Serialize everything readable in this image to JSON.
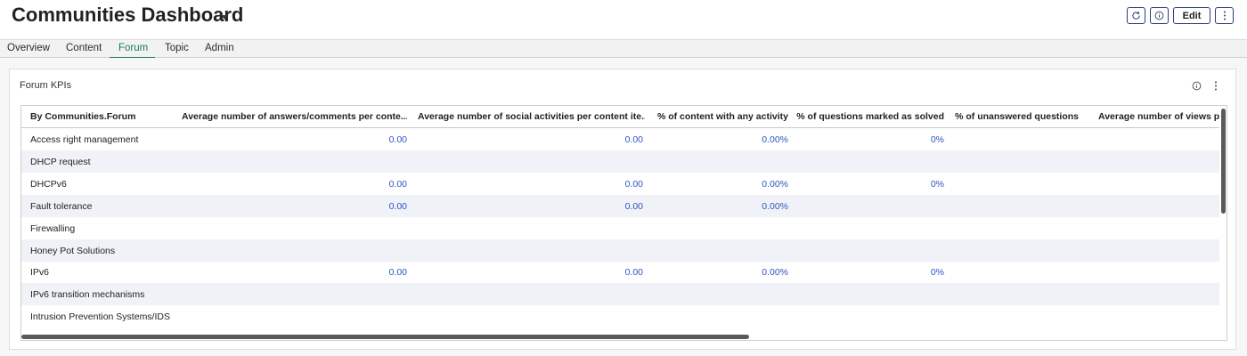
{
  "header": {
    "title": "Communities Dashboard",
    "edit_label": "Edit"
  },
  "tabs": [
    {
      "label": "Overview",
      "active": false
    },
    {
      "label": "Content",
      "active": false
    },
    {
      "label": "Forum",
      "active": true
    },
    {
      "label": "Topic",
      "active": false
    },
    {
      "label": "Admin",
      "active": false
    }
  ],
  "panel": {
    "title": "Forum KPIs"
  },
  "table": {
    "columns": [
      "By Communities.Forum",
      "Average number of answers/comments per conte...",
      "Average number of social activities per content ite...",
      "% of content with any activity",
      "% of questions marked as solved",
      "% of unanswered questions",
      "Average number of views pe"
    ],
    "rows": [
      {
        "name": "Access right management",
        "c1": "0.00",
        "c2": "0.00",
        "c3": "0.00%",
        "c4": "0%"
      },
      {
        "name": "DHCP request",
        "c1": "",
        "c2": "",
        "c3": "",
        "c4": ""
      },
      {
        "name": "DHCPv6",
        "c1": "0.00",
        "c2": "0.00",
        "c3": "0.00%",
        "c4": "0%"
      },
      {
        "name": "Fault tolerance",
        "c1": "0.00",
        "c2": "0.00",
        "c3": "0.00%",
        "c4": ""
      },
      {
        "name": "Firewalling",
        "c1": "",
        "c2": "",
        "c3": "",
        "c4": ""
      },
      {
        "name": "Honey Pot Solutions",
        "c1": "",
        "c2": "",
        "c3": "",
        "c4": ""
      },
      {
        "name": "IPv6",
        "c1": "0.00",
        "c2": "0.00",
        "c3": "0.00%",
        "c4": "0%"
      },
      {
        "name": "IPv6 transition mechanisms",
        "c1": "",
        "c2": "",
        "c3": "",
        "c4": ""
      },
      {
        "name": "Intrusion Prevention Systems/IDS",
        "c1": "",
        "c2": "",
        "c3": "",
        "c4": ""
      }
    ]
  },
  "colors": {
    "accent": "#1a7a5a",
    "link_value": "#2d56c2",
    "row_alt": "#f0f2f7"
  },
  "icons": [
    "refresh-icon",
    "info-icon",
    "more-vertical-icon",
    "chevron-down-icon"
  ]
}
